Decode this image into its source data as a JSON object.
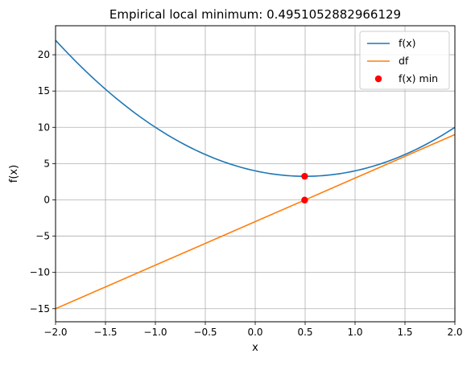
{
  "chart_data": {
    "type": "line",
    "title": "Empirical local minimum: 0.4951052882966129",
    "xlabel": "x",
    "ylabel": "f(x)",
    "xlim": [
      -2.0,
      2.0
    ],
    "ylim": [
      -16.8,
      24.0
    ],
    "grid": true,
    "legend_position": "top-right",
    "x_ticks": [
      -2.0,
      -1.5,
      -1.0,
      -0.5,
      0.0,
      0.5,
      1.0,
      1.5,
      2.0
    ],
    "x_tick_labels": [
      "−2.0",
      "−1.5",
      "−1.0",
      "−0.5",
      "0.0",
      "0.5",
      "1.0",
      "1.5",
      "2.0"
    ],
    "y_ticks": [
      -15,
      -10,
      -5,
      0,
      5,
      10,
      15,
      20
    ],
    "y_tick_labels": [
      "−15",
      "−10",
      "−5",
      "0",
      "5",
      "10",
      "15",
      "20"
    ],
    "x": [
      -2.0,
      -1.5,
      -1.0,
      -0.5,
      0.0,
      0.5,
      1.0,
      1.5,
      2.0
    ],
    "series": [
      {
        "name": "f(x)",
        "style": "line",
        "color": "#1f77b4",
        "values": [
          22.0,
          15.25,
          10.0,
          6.25,
          4.0,
          3.25,
          4.0,
          6.25,
          10.0
        ]
      },
      {
        "name": "df",
        "style": "line",
        "color": "#ff7f0e",
        "values": [
          -15.0,
          -12.0,
          -9.0,
          -6.0,
          -3.0,
          0.0,
          3.0,
          6.0,
          9.0
        ]
      },
      {
        "name": "f(x) min",
        "style": "marker",
        "color": "#ff0000",
        "points": [
          {
            "x": 0.495,
            "y": 3.25
          },
          {
            "x": 0.495,
            "y": -0.03
          }
        ]
      }
    ]
  }
}
